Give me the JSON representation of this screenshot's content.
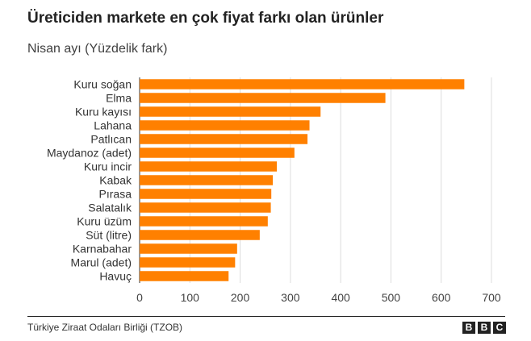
{
  "title": "Üreticiden markete en çok fiyat farkı olan ürünler",
  "subtitle": "Nisan ayı (Yüzdelik fark)",
  "source": "Türkiye Ziraat Odaları Birliği (TZOB)",
  "logo": [
    "B",
    "B",
    "C"
  ],
  "colors": {
    "bar": "#ff8000",
    "grid": "#dddddd",
    "axis": "#333333"
  },
  "chart_data": {
    "type": "bar",
    "orientation": "horizontal",
    "title": "Üreticiden markete en çok fiyat farkı olan ürünler",
    "subtitle": "Nisan ayı (Yüzdelik fark)",
    "categories": [
      "Kuru soğan",
      "Elma",
      "Kuru kayısı",
      "Lahana",
      "Patlıcan",
      "Maydanoz (adet)",
      "Kuru incir",
      "Kabak",
      "Pırasa",
      "Salatalık",
      "Kuru üzüm",
      "Süt (litre)",
      "Karnabahar",
      "Marul (adet)",
      "Havuç"
    ],
    "values": [
      646,
      489,
      360,
      338,
      334,
      308,
      273,
      265,
      262,
      261,
      255,
      239,
      194,
      190,
      177
    ],
    "xlim": [
      0,
      700
    ],
    "xticks": [
      0,
      100,
      200,
      300,
      400,
      500,
      600,
      700
    ],
    "grid": true,
    "legend": "none"
  }
}
